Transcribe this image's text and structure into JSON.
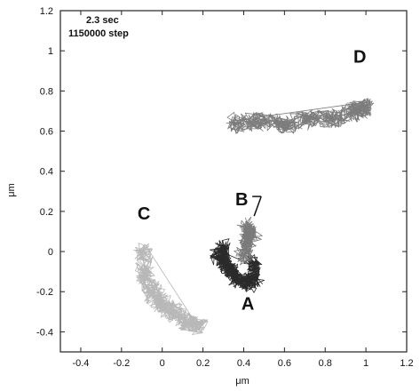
{
  "chart_data": {
    "type": "scatter",
    "title": "",
    "xlabel": "μm",
    "ylabel": "μm",
    "xlim": [
      -0.5,
      1.2
    ],
    "ylim": [
      -0.5,
      1.2
    ],
    "xticks": [
      "-0.4",
      "-0.2",
      "0",
      "0.2",
      "0.4",
      "0.6",
      "0.8",
      "1",
      "1.2"
    ],
    "yticks": [
      "-0.4",
      "-0.2",
      "0",
      "0.2",
      "0.4",
      "0.6",
      "0.8",
      "1",
      "1.2"
    ],
    "grid": false,
    "annotations": [
      "2.3 sec",
      "1150000 step"
    ],
    "series": [
      {
        "label": "A",
        "label_xy": [
          0.42,
          -0.29
        ],
        "color": "#2a2a2a",
        "path": [
          [
            0.3,
            0.02
          ],
          [
            0.28,
            -0.02
          ],
          [
            0.31,
            -0.06
          ],
          [
            0.34,
            -0.1
          ],
          [
            0.37,
            -0.14
          ],
          [
            0.42,
            -0.16
          ],
          [
            0.45,
            -0.13
          ],
          [
            0.45,
            -0.06
          ]
        ]
      },
      {
        "label": "B",
        "label_xy": [
          0.39,
          0.23
        ],
        "color": "#7a7a7a",
        "path": [
          [
            0.4,
            -0.02
          ],
          [
            0.42,
            0.05
          ],
          [
            0.42,
            0.12
          ],
          [
            0.44,
            0.08
          ]
        ]
      },
      {
        "label": "C",
        "label_xy": [
          -0.09,
          0.16
        ],
        "color": "#b8b8b8",
        "path": [
          [
            -0.1,
            0.0
          ],
          [
            -0.08,
            -0.12
          ],
          [
            -0.05,
            -0.2
          ],
          [
            0.0,
            -0.26
          ],
          [
            0.05,
            -0.3
          ],
          [
            0.12,
            -0.35
          ],
          [
            0.18,
            -0.37
          ]
        ]
      },
      {
        "label": "D",
        "label_xy": [
          0.97,
          0.94
        ],
        "color": "#7c7c7c",
        "path": [
          [
            0.36,
            0.64
          ],
          [
            0.48,
            0.65
          ],
          [
            0.6,
            0.63
          ],
          [
            0.72,
            0.66
          ],
          [
            0.84,
            0.66
          ],
          [
            0.95,
            0.7
          ],
          [
            1.0,
            0.72
          ]
        ]
      }
    ]
  },
  "colors": {
    "ink": "#111111",
    "frame": "#222222",
    "background": "#ffffff"
  }
}
